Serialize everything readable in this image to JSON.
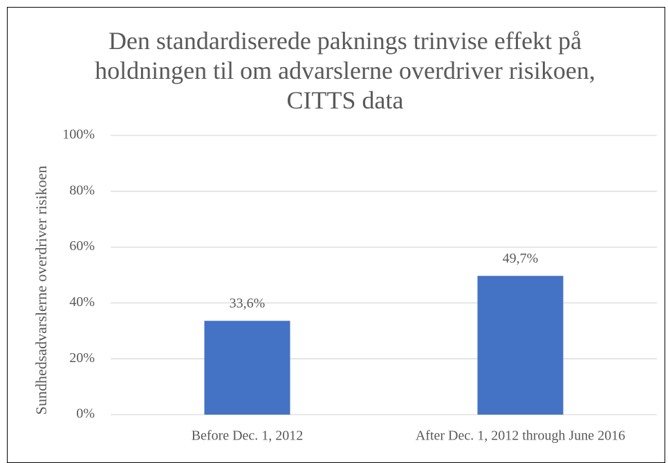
{
  "chart_data": {
    "type": "bar",
    "title": "Den standardiserede paknings trinvise effekt på holdningen til om advarslerne overdriver risikoen, CITTS data",
    "ylabel": "Sundhedsadvarslerne overdriver risikoen",
    "categories": [
      "Before Dec. 1, 2012",
      "After Dec. 1, 2012 through June 2016"
    ],
    "values": [
      33.6,
      49.7
    ],
    "value_labels": [
      "33,6%",
      "49,7%"
    ],
    "color": "#4472c4",
    "ylim": [
      0,
      100
    ],
    "yticks": [
      {
        "value": 0,
        "label": "0%"
      },
      {
        "value": 20,
        "label": "20%"
      },
      {
        "value": 40,
        "label": "40%"
      },
      {
        "value": 60,
        "label": "60%"
      },
      {
        "value": 80,
        "label": "80%"
      },
      {
        "value": 100,
        "label": "100%"
      }
    ],
    "grid": true
  }
}
